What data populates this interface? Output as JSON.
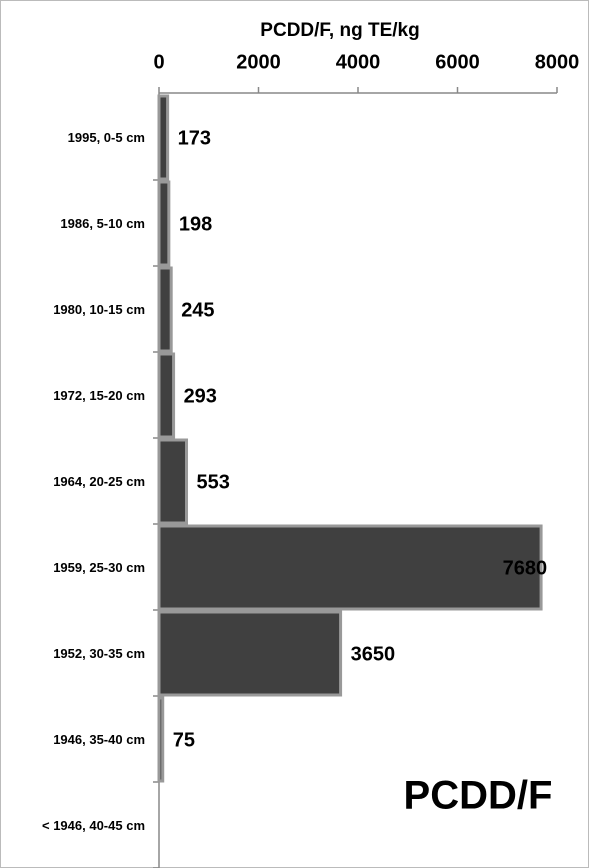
{
  "chart_data": {
    "type": "bar",
    "orientation": "horizontal",
    "x_label": "PCDD/F, ng TE/kg",
    "annotation": "PCDD/F",
    "categories": [
      "1995, 0-5 cm",
      "1986, 5-10 cm",
      "1980, 10-15 cm",
      "1972, 15-20 cm",
      "1964, 20-25 cm",
      "1959, 25-30 cm",
      "1952, 30-35 cm",
      "1946, 35-40 cm",
      "< 1946, 40-45 cm"
    ],
    "values": [
      173,
      198,
      245,
      293,
      553,
      7680,
      3650,
      75,
      null
    ],
    "color": "#404040",
    "edge_color": "#999999",
    "xlim": [
      0,
      8000
    ],
    "xticks": [
      0,
      2000,
      4000,
      6000,
      8000
    ],
    "grid": false
  }
}
